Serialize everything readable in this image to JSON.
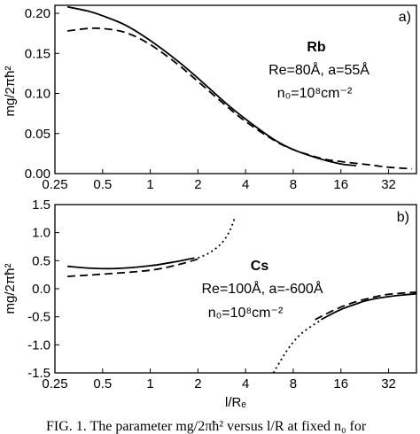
{
  "chart_data": [
    {
      "panel_label": "a)",
      "type": "line",
      "x_scale": "log2",
      "xlim": [
        0.25,
        48
      ],
      "ylim": [
        0.0,
        0.21
      ],
      "xticks": [
        0.25,
        0.5,
        1,
        2,
        4,
        8,
        16,
        32
      ],
      "xtick_labels": [
        "0.25",
        "0.5",
        "1",
        "2",
        "4",
        "8",
        "16",
        "32"
      ],
      "yticks": [
        0.0,
        0.05,
        0.1,
        0.15,
        0.2
      ],
      "ytick_labels": [
        "0.00",
        "0.05",
        "0.10",
        "0.15",
        "0.20"
      ],
      "ylabel": "mg/2πħ²",
      "annotations": [
        "Rb",
        "Re=80Å, a=55Å",
        "n₀=10⁸cm⁻²"
      ],
      "series": [
        {
          "style": "solid",
          "x": [
            0.3,
            0.4,
            0.5,
            0.7,
            1.0,
            1.5,
            2.0,
            3.0,
            4.0,
            6.0,
            8.0,
            12.0,
            16.0,
            20.0
          ],
          "y": [
            0.208,
            0.203,
            0.197,
            0.185,
            0.166,
            0.14,
            0.119,
            0.088,
            0.068,
            0.043,
            0.03,
            0.018,
            0.012,
            0.01
          ]
        },
        {
          "style": "dashed",
          "x": [
            0.3,
            0.4,
            0.5,
            0.7,
            1.0,
            1.5,
            2.0,
            3.0,
            4.0,
            6.0,
            8.0,
            12.0,
            16.0,
            24.0,
            32.0,
            45.0
          ],
          "y": [
            0.178,
            0.181,
            0.181,
            0.176,
            0.161,
            0.136,
            0.115,
            0.085,
            0.065,
            0.042,
            0.03,
            0.019,
            0.015,
            0.011,
            0.008,
            0.006
          ]
        }
      ]
    },
    {
      "panel_label": "b)",
      "type": "line",
      "x_scale": "log2",
      "xlim": [
        0.25,
        48
      ],
      "ylim": [
        -1.5,
        1.5
      ],
      "xticks": [
        0.25,
        0.5,
        1,
        2,
        4,
        8,
        16,
        32
      ],
      "xtick_labels": [
        "0.25",
        "0.5",
        "1",
        "2",
        "4",
        "8",
        "16",
        "32"
      ],
      "yticks": [
        -1.5,
        -1.0,
        -0.5,
        0.0,
        0.5,
        1.0,
        1.5
      ],
      "ytick_labels": [
        "-1.5",
        "-1.0",
        "-0.5",
        "0.0",
        "0.5",
        "1.0",
        "1.5"
      ],
      "xlabel": "l/Rₑ",
      "ylabel": "mg/2πħ²",
      "annotations": [
        "Cs",
        "Re=100Å, a=-600Å",
        "n₀=10⁸cm⁻²"
      ],
      "series": [
        {
          "style": "solid",
          "x": [
            0.3,
            0.4,
            0.6,
            1.0,
            1.5,
            1.9
          ],
          "y": [
            0.4,
            0.37,
            0.36,
            0.41,
            0.49,
            0.55
          ]
        },
        {
          "style": "solid",
          "x": [
            12,
            16,
            20,
            24,
            32,
            40,
            48
          ],
          "y": [
            -0.55,
            -0.37,
            -0.27,
            -0.2,
            -0.14,
            -0.11,
            -0.09
          ]
        },
        {
          "style": "dashed",
          "x": [
            0.3,
            0.5,
            1.0,
            1.5,
            2.0
          ],
          "y": [
            0.22,
            0.26,
            0.33,
            0.43,
            0.53
          ]
        },
        {
          "style": "dashed",
          "x": [
            11,
            14,
            18,
            24,
            32,
            48
          ],
          "y": [
            -0.55,
            -0.4,
            -0.27,
            -0.17,
            -0.1,
            -0.06
          ]
        },
        {
          "style": "dotted",
          "x": [
            2.0,
            2.3,
            2.6,
            2.9,
            3.2,
            3.4
          ],
          "y": [
            0.55,
            0.62,
            0.72,
            0.85,
            1.05,
            1.25
          ]
        },
        {
          "style": "dotted",
          "x": [
            6.0,
            7.0,
            8.0,
            9.0,
            10.5,
            12.0
          ],
          "y": [
            -1.5,
            -1.18,
            -0.95,
            -0.8,
            -0.66,
            -0.56
          ]
        }
      ]
    }
  ],
  "caption": "FIG. 1. The parameter mg/2πħ² versus l/R at fixed n₀ for"
}
